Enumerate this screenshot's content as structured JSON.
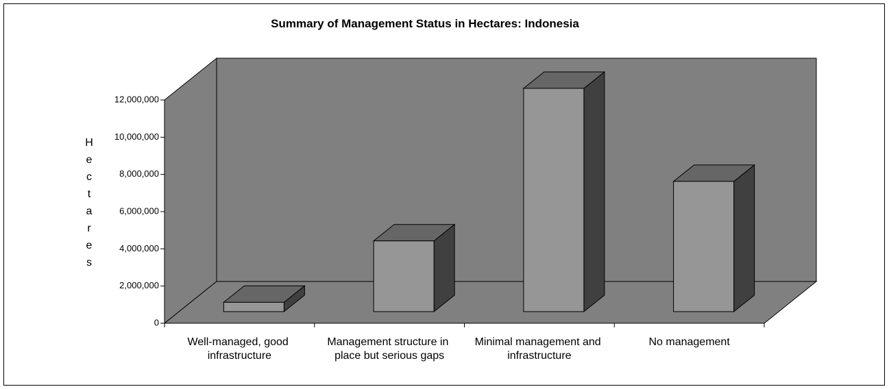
{
  "chart_data": {
    "type": "bar3d",
    "title": "Summary of Management Status in Hectares: Indonesia",
    "y_label": "Hectares",
    "categories": [
      "Well-managed, good infrastructure",
      "Management structure in place but serious gaps",
      "Minimal management and infrastructure",
      "No management"
    ],
    "values": [
      500000,
      3800000,
      12000000,
      7000000
    ],
    "ylim": [
      0,
      12000000
    ],
    "yticks": [
      0,
      {
        "value": 2000000,
        "label": "2,000,000"
      },
      {
        "value": 4000000,
        "label": "4,000,000"
      },
      {
        "value": 6000000,
        "label": "6,000,000"
      },
      {
        "value": 8000000,
        "label": "8,000,000"
      },
      {
        "value": 10000000,
        "label": "10,000,000"
      },
      {
        "value": 12000000,
        "label": "12,000,000"
      }
    ],
    "color": "#969696",
    "wall_color": "#808080"
  }
}
